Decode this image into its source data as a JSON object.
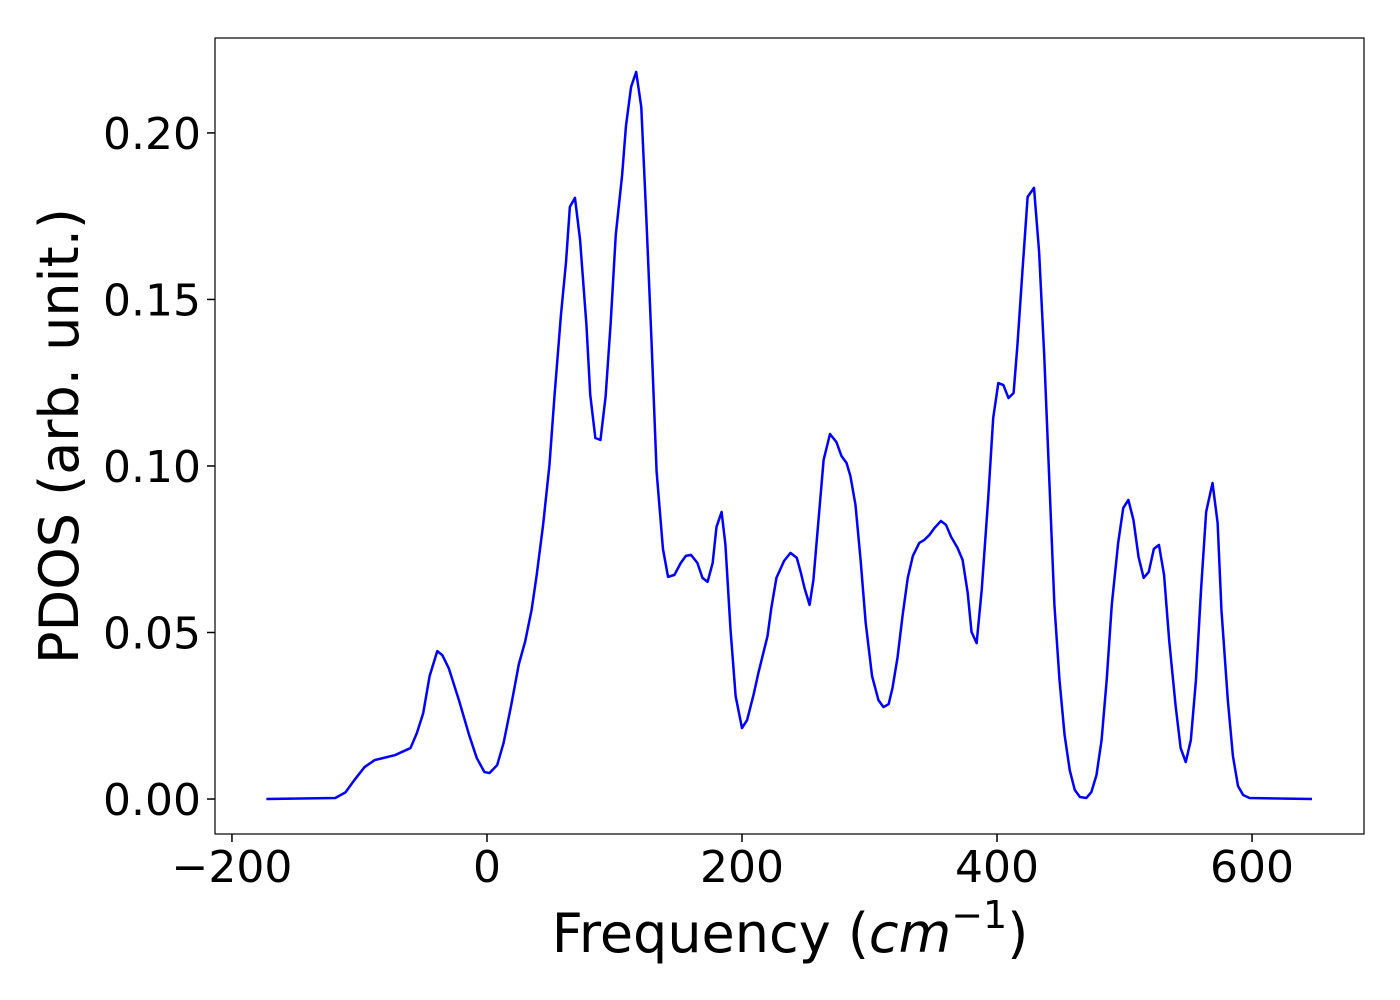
{
  "chart_data": {
    "type": "line",
    "xlabel": [
      "Frequency (",
      "cm",
      "−1",
      ")"
    ],
    "ylabel": "PDOS (arb. unit.)",
    "xlim": [
      -213.3,
      687.8
    ],
    "ylim": [
      -0.0105,
      0.2285
    ],
    "xticks": [
      {
        "value": -200,
        "label": "−200"
      },
      0,
      200,
      400,
      600
    ],
    "yticks": [
      {
        "value": 0,
        "label": "0.00"
      },
      {
        "value": 0.05,
        "label": "0.05"
      },
      {
        "value": 0.1,
        "label": "0.10"
      },
      {
        "value": 0.15,
        "label": "0.15"
      },
      {
        "value": 0.2,
        "label": "0.20"
      }
    ],
    "grid": false,
    "series": [
      {
        "color": "#0000ff",
        "x": [
          -173,
          -119,
          -111,
          -104,
          -96,
          -88,
          -72,
          -60,
          -55,
          -50,
          -45,
          -39,
          -35,
          -30,
          -22,
          -14,
          -8,
          -2,
          2,
          8,
          13,
          19,
          25,
          30,
          35,
          39,
          44,
          49,
          53,
          58,
          62,
          65,
          69,
          73,
          78,
          81,
          85,
          89,
          93,
          97,
          101,
          106,
          109,
          113,
          117,
          121,
          125,
          129,
          133,
          138,
          142,
          147,
          152,
          156,
          160,
          165,
          169,
          173,
          177,
          180,
          184,
          187,
          191,
          195,
          200,
          204,
          209,
          213,
          220,
          223,
          227,
          233,
          238,
          243,
          246,
          249,
          253,
          256,
          260,
          264,
          269,
          274,
          278,
          282,
          285,
          289,
          293,
          297,
          302,
          307,
          311,
          315,
          318,
          322,
          326,
          330,
          334,
          339,
          343,
          347,
          351,
          356,
          360,
          364,
          369,
          373,
          377,
          380,
          384,
          388,
          393,
          397,
          401,
          405,
          409,
          413,
          416,
          420,
          424,
          429,
          433,
          437,
          441,
          445,
          449,
          453,
          457,
          461,
          465,
          470,
          474,
          478,
          482,
          486,
          490,
          495,
          499,
          503,
          507,
          511,
          515,
          519,
          523,
          527,
          531,
          535,
          540,
          544,
          548,
          552,
          556,
          560,
          564,
          569,
          573,
          576,
          581,
          585,
          589,
          593,
          598,
          647
        ],
        "values": [
          0,
          0.0003,
          0.002,
          0.0057,
          0.0096,
          0.0117,
          0.0132,
          0.0153,
          0.0198,
          0.0258,
          0.0369,
          0.0444,
          0.0432,
          0.0393,
          0.0297,
          0.0192,
          0.0123,
          0.0081,
          0.0078,
          0.0102,
          0.0168,
          0.0282,
          0.0405,
          0.0474,
          0.0568,
          0.0673,
          0.0823,
          0.1003,
          0.1213,
          0.1453,
          0.1613,
          0.1778,
          0.1805,
          0.1679,
          0.1423,
          0.1213,
          0.1084,
          0.1078,
          0.1207,
          0.1429,
          0.1694,
          0.1874,
          0.2021,
          0.2138,
          0.2183,
          0.2078,
          0.1742,
          0.1378,
          0.0985,
          0.0751,
          0.0667,
          0.0673,
          0.0709,
          0.073,
          0.0733,
          0.0709,
          0.0664,
          0.0652,
          0.0709,
          0.0817,
          0.0862,
          0.0763,
          0.0508,
          0.0309,
          0.0213,
          0.0237,
          0.0312,
          0.0381,
          0.0489,
          0.0574,
          0.0664,
          0.0715,
          0.0739,
          0.0724,
          0.0682,
          0.0634,
          0.0583,
          0.0658,
          0.0838,
          0.1018,
          0.1096,
          0.1072,
          0.103,
          0.1009,
          0.097,
          0.0883,
          0.0718,
          0.0529,
          0.0369,
          0.0297,
          0.0276,
          0.0285,
          0.0333,
          0.0426,
          0.0553,
          0.0664,
          0.073,
          0.0769,
          0.0778,
          0.0793,
          0.0814,
          0.0835,
          0.0823,
          0.0787,
          0.0754,
          0.0718,
          0.0619,
          0.0502,
          0.0468,
          0.0628,
          0.0898,
          0.1144,
          0.1249,
          0.1243,
          0.1204,
          0.1219,
          0.1363,
          0.1589,
          0.1808,
          0.1835,
          0.1643,
          0.1333,
          0.0958,
          0.0583,
          0.0357,
          0.0192,
          0.0087,
          0.0027,
          0.0006,
          0.0003,
          0.0021,
          0.0072,
          0.0177,
          0.0357,
          0.0583,
          0.0769,
          0.0874,
          0.0898,
          0.0838,
          0.0727,
          0.0664,
          0.0682,
          0.0751,
          0.0763,
          0.0673,
          0.0477,
          0.0282,
          0.0153,
          0.0111,
          0.0177,
          0.0357,
          0.0628,
          0.0862,
          0.0949,
          0.0829,
          0.0568,
          0.0297,
          0.0129,
          0.0039,
          0.0012,
          0.0003,
          0
        ]
      }
    ]
  }
}
